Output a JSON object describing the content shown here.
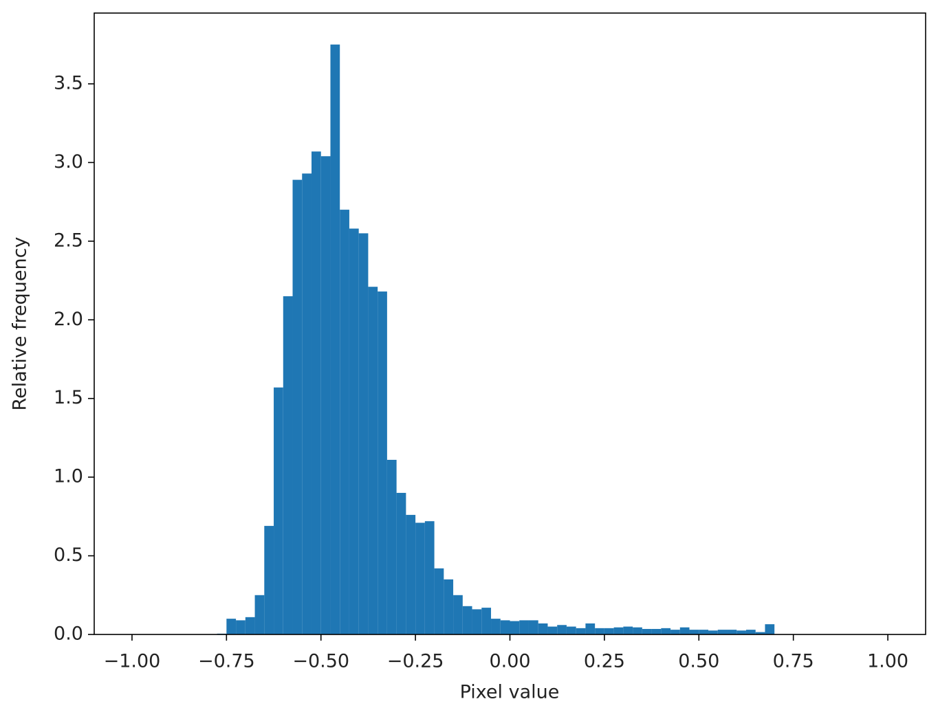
{
  "chart_data": {
    "type": "histogram",
    "x_label": "Pixel value",
    "y_label": "Relative frequency",
    "color": "#1f77b4",
    "bins": [
      -0.775,
      -0.75,
      -0.725,
      -0.7,
      -0.675,
      -0.65,
      -0.625,
      -0.6,
      -0.575,
      -0.55,
      -0.525,
      -0.5,
      -0.475,
      -0.45,
      -0.425,
      -0.4,
      -0.375,
      -0.35,
      -0.325,
      -0.3,
      -0.275,
      -0.25,
      -0.225,
      -0.2,
      -0.175,
      -0.15,
      -0.125,
      -0.1,
      -0.075,
      -0.05,
      -0.025,
      0,
      0.025,
      0.05,
      0.075,
      0.1,
      0.125,
      0.15,
      0.175,
      0.2,
      0.225,
      0.25,
      0.275,
      0.3,
      0.325,
      0.35,
      0.375,
      0.4,
      0.425,
      0.45,
      0.475,
      0.5,
      0.525,
      0.55,
      0.575,
      0.6,
      0.625,
      0.65,
      0.675,
      0.7
    ],
    "values": [
      0.005,
      0.1,
      0.09,
      0.11,
      0.25,
      0.69,
      1.57,
      2.15,
      2.89,
      2.93,
      3.07,
      3.04,
      3.75,
      2.7,
      2.58,
      2.55,
      2.21,
      2.18,
      1.11,
      0.9,
      0.76,
      0.71,
      0.72,
      0.42,
      0.35,
      0.25,
      0.18,
      0.16,
      0.17,
      0.1,
      0.09,
      0.085,
      0.09,
      0.09,
      0.07,
      0.05,
      0.06,
      0.05,
      0.04,
      0.07,
      0.04,
      0.04,
      0.045,
      0.05,
      0.045,
      0.035,
      0.035,
      0.04,
      0.03,
      0.045,
      0.03,
      0.03,
      0.025,
      0.03,
      0.03,
      0.025,
      0.03,
      0.015,
      0.065
    ],
    "xlim": [
      -1.1,
      1.1
    ],
    "ylim": [
      0,
      3.95
    ],
    "xticks": [
      {
        "value": -1,
        "label": "−1.00"
      },
      {
        "value": -0.75,
        "label": "−0.75"
      },
      {
        "value": -0.5,
        "label": "−0.50"
      },
      {
        "value": -0.25,
        "label": "−0.25"
      },
      {
        "value": 0,
        "label": "0.00"
      },
      {
        "value": 0.25,
        "label": "0.25"
      },
      {
        "value": 0.5,
        "label": "0.50"
      },
      {
        "value": 0.75,
        "label": "0.75"
      },
      {
        "value": 1,
        "label": "1.00"
      }
    ],
    "yticks": [
      {
        "value": 0,
        "label": "0.0"
      },
      {
        "value": 0.5,
        "label": "0.5"
      },
      {
        "value": 1,
        "label": "1.0"
      },
      {
        "value": 1.5,
        "label": "1.5"
      },
      {
        "value": 2,
        "label": "2.0"
      },
      {
        "value": 2.5,
        "label": "2.5"
      },
      {
        "value": 3,
        "label": "3.0"
      },
      {
        "value": 3.5,
        "label": "3.5"
      }
    ]
  }
}
